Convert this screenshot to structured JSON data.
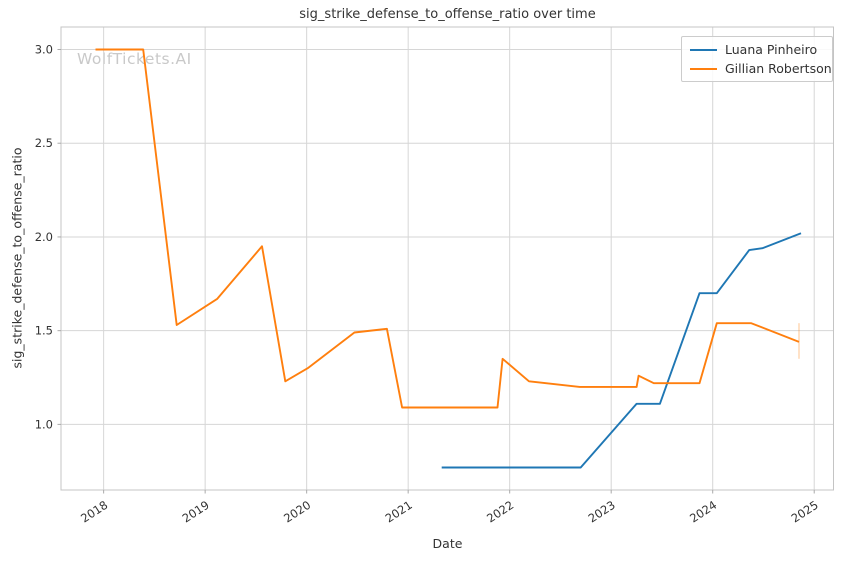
{
  "watermark": "WolfTickets.AI",
  "chart_data": {
    "type": "line",
    "title": "sig_strike_defense_to_offense_ratio over time",
    "xlabel": "Date",
    "ylabel": "sig_strike_defense_to_offense_ratio",
    "xlim": [
      2017.58,
      2025.19
    ],
    "ylim": [
      0.65,
      3.12
    ],
    "xticks": [
      2018,
      2019,
      2020,
      2021,
      2022,
      2023,
      2024,
      2025
    ],
    "yticks": [
      1.0,
      1.5,
      2.0,
      2.5,
      3.0
    ],
    "grid": true,
    "legend_position": "upper right",
    "colors": {
      "blue": "#1f77b4",
      "orange": "#ff7f0e",
      "grid": "#d6d6d6",
      "spine": "#c4c4c4",
      "text": "#333333",
      "watermark": "#c9c9c9"
    },
    "series": [
      {
        "name": "Luana Pinheiro",
        "color": "#1f77b4",
        "points": [
          [
            2021.33,
            0.77
          ],
          [
            2022.7,
            0.77
          ],
          [
            2023.25,
            1.11
          ],
          [
            2023.48,
            1.11
          ],
          [
            2023.87,
            1.7
          ],
          [
            2024.04,
            1.7
          ],
          [
            2024.36,
            1.93
          ],
          [
            2024.49,
            1.94
          ],
          [
            2024.87,
            2.02
          ]
        ]
      },
      {
        "name": "Gillian Robertson",
        "color": "#ff7f0e",
        "points": [
          [
            2017.92,
            3.0
          ],
          [
            2018.39,
            3.0
          ],
          [
            2018.72,
            1.53
          ],
          [
            2019.12,
            1.67
          ],
          [
            2019.56,
            1.95
          ],
          [
            2019.79,
            1.23
          ],
          [
            2020.01,
            1.3
          ],
          [
            2020.47,
            1.49
          ],
          [
            2020.79,
            1.51
          ],
          [
            2020.94,
            1.09
          ],
          [
            2021.88,
            1.09
          ],
          [
            2021.93,
            1.35
          ],
          [
            2022.19,
            1.23
          ],
          [
            2022.69,
            1.2
          ],
          [
            2023.25,
            1.2
          ],
          [
            2023.27,
            1.26
          ],
          [
            2023.42,
            1.22
          ],
          [
            2023.87,
            1.22
          ],
          [
            2024.04,
            1.54
          ],
          [
            2024.38,
            1.54
          ],
          [
            2024.85,
            1.44
          ]
        ],
        "end_cap": {
          "x": 2024.85,
          "y_from": 1.35,
          "y_to": 1.54,
          "opacity": 0.3
        }
      }
    ]
  }
}
